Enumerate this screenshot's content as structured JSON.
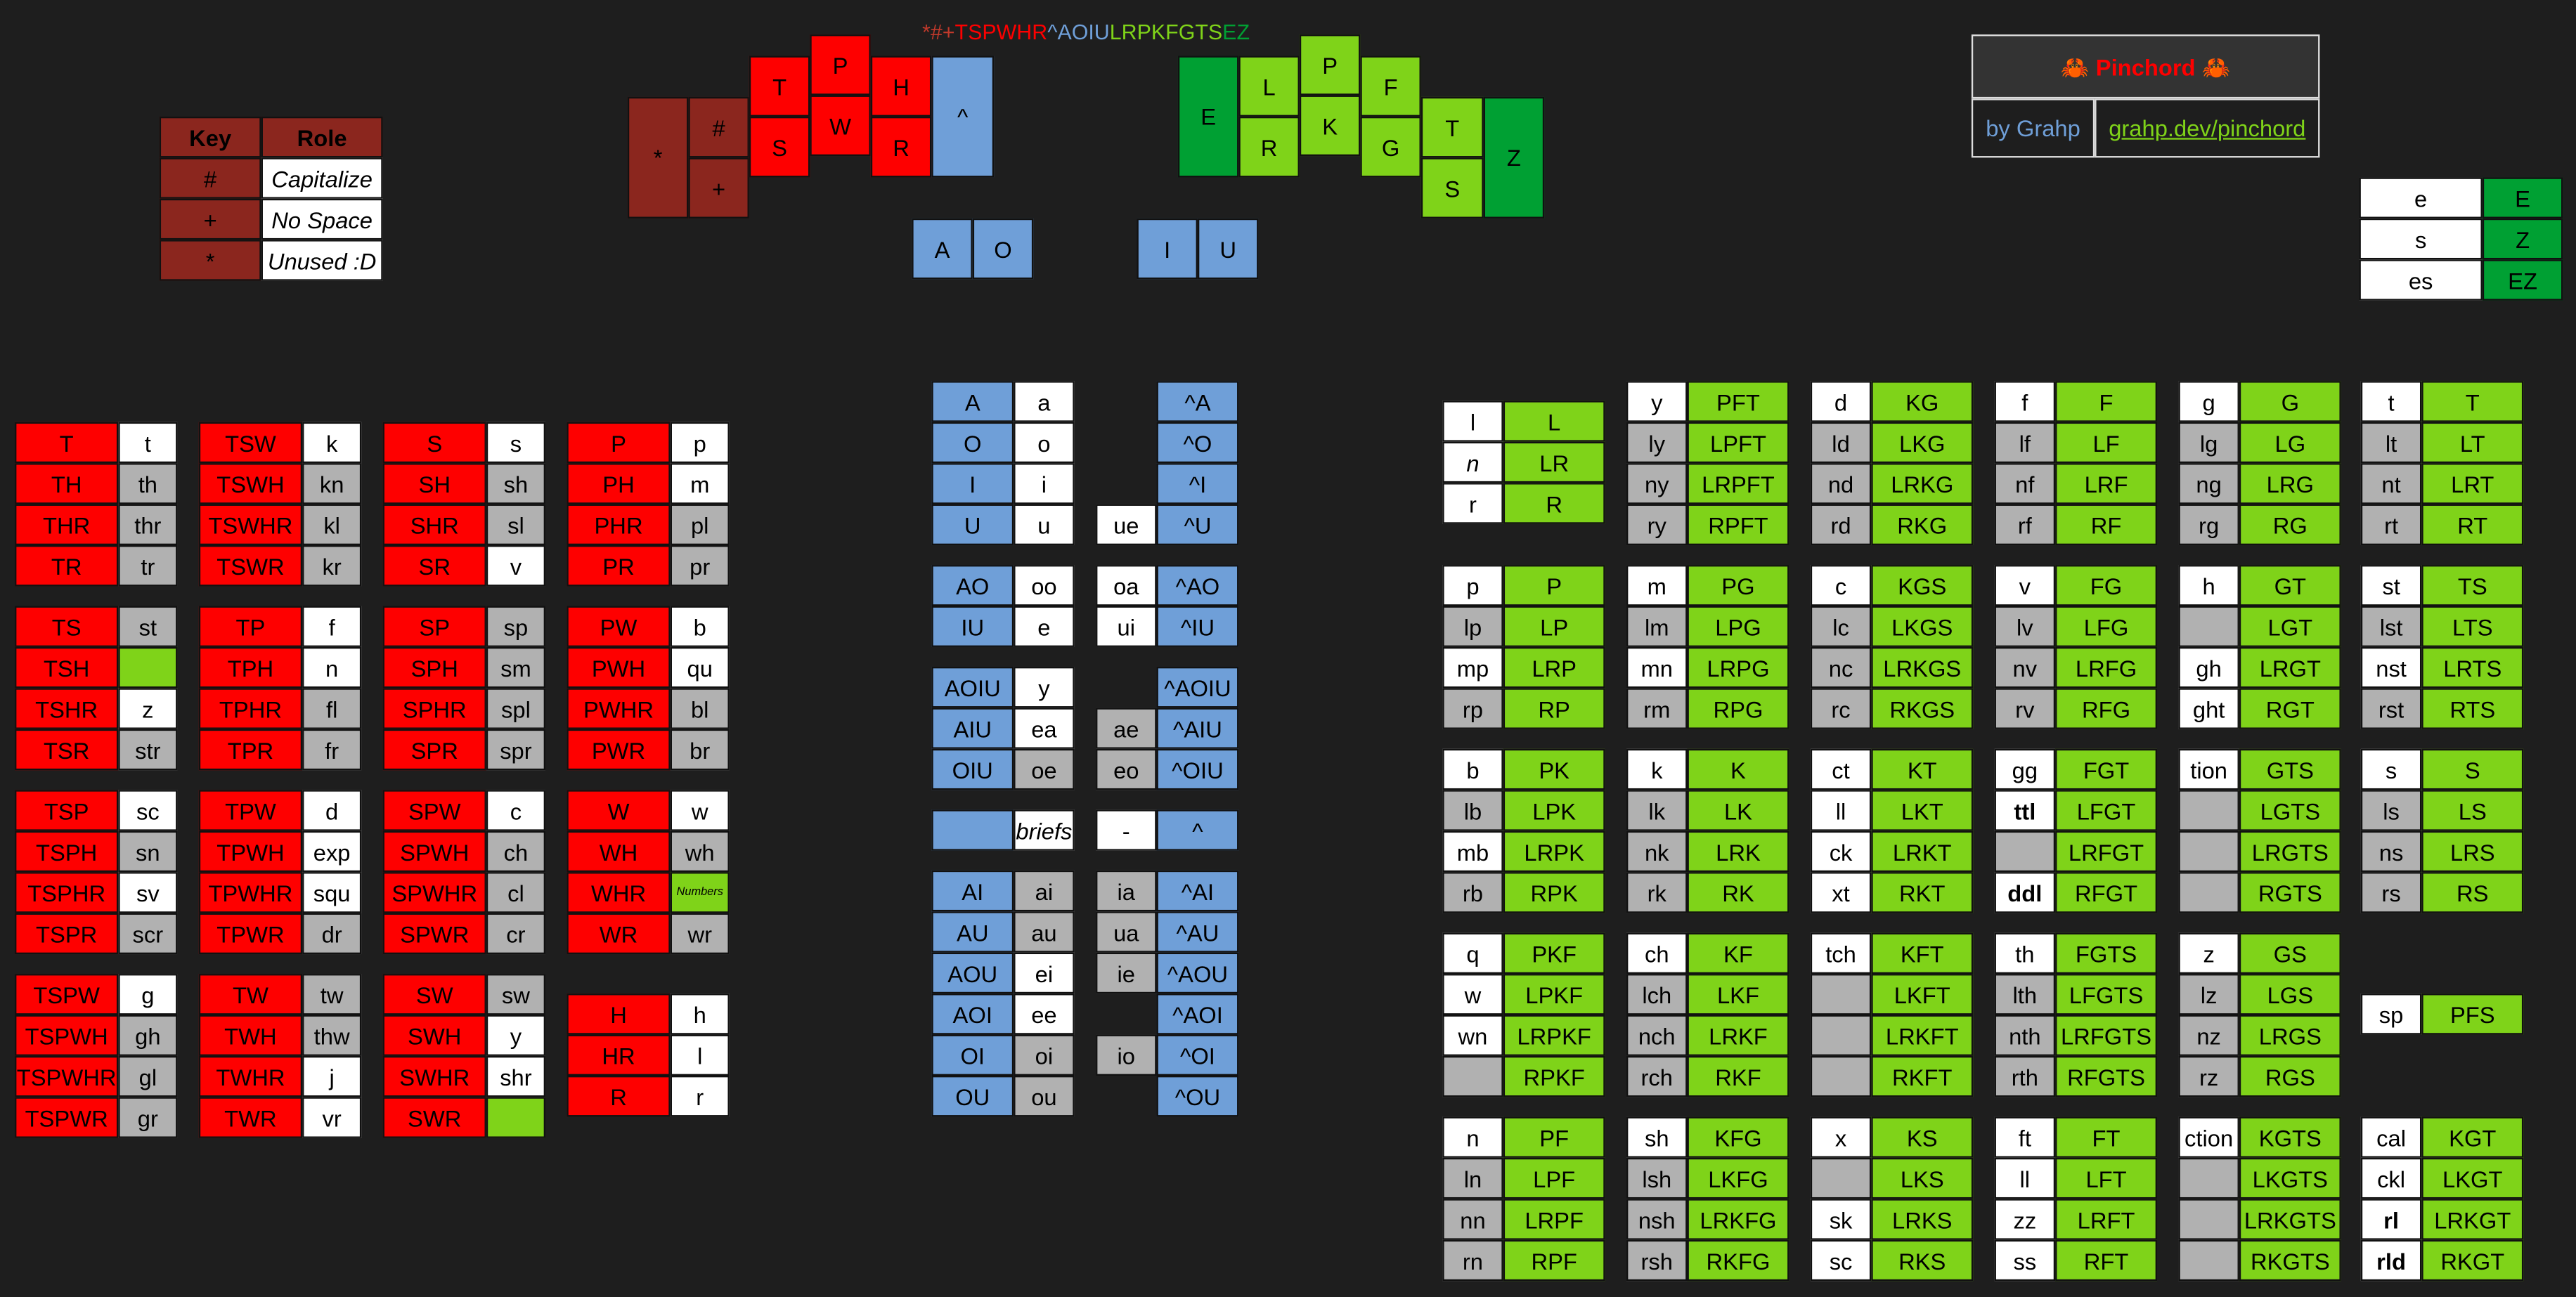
{
  "steno_order": [
    {
      "text": "*#+",
      "color": "#c0392b"
    },
    {
      "text": "TSPWHR",
      "color": "#fe0000"
    },
    {
      "text": "^AOIU",
      "color": "#6f9fd8"
    },
    {
      "text": "LRPKFGTS",
      "color": "#7fd319"
    },
    {
      "text": "EZ",
      "color": "#00a033"
    }
  ],
  "title_box": {
    "title": "🦀 Pinchord 🦀",
    "byline": "by Grahp",
    "link": "grahp.dev/pinchord"
  },
  "key_legend": {
    "headers": [
      "Key",
      "Role"
    ],
    "rows": [
      [
        "#",
        "Capitalize"
      ],
      [
        "+",
        "No Space"
      ],
      [
        "*",
        "Unused :D"
      ]
    ]
  },
  "keyboard": {
    "left_keys": [
      "*",
      "#",
      "+",
      "T",
      "S",
      "P",
      "W",
      "H",
      "R",
      "^"
    ],
    "right_keys": [
      "E",
      "L",
      "R",
      "P",
      "K",
      "F",
      "G",
      "T",
      "S",
      "Z"
    ],
    "vowel_keys": [
      "A",
      "O",
      "I",
      "U"
    ]
  },
  "final_suffix_table": [
    [
      "e",
      "E"
    ],
    [
      "s",
      "Z"
    ],
    [
      "es",
      "EZ"
    ]
  ],
  "starters": [
    [
      [
        [
          "T",
          "t"
        ],
        [
          "TH",
          "th"
        ],
        [
          "THR",
          "thr"
        ],
        [
          "TR",
          "tr"
        ]
      ],
      [
        [
          "TS",
          "st"
        ],
        [
          "TSH",
          ""
        ],
        [
          "TSHR",
          "z"
        ],
        [
          "TSR",
          "str"
        ]
      ],
      [
        [
          "TSP",
          "sc"
        ],
        [
          "TSPH",
          "sn"
        ],
        [
          "TSPHR",
          "sv"
        ],
        [
          "TSPR",
          "scr"
        ]
      ],
      [
        [
          "TSPW",
          "g"
        ],
        [
          "TSPWH",
          "gh"
        ],
        [
          "TSPWHR",
          "gl"
        ],
        [
          "TSPWR",
          "gr"
        ]
      ]
    ],
    [
      [
        [
          "TSW",
          "k"
        ],
        [
          "TSWH",
          "kn"
        ],
        [
          "TSWHR",
          "kl"
        ],
        [
          "TSWR",
          "kr"
        ]
      ],
      [
        [
          "TP",
          "f"
        ],
        [
          "TPH",
          "n"
        ],
        [
          "TPHR",
          "fl"
        ],
        [
          "TPR",
          "fr"
        ]
      ],
      [
        [
          "TPW",
          "d"
        ],
        [
          "TPWH",
          "exp"
        ],
        [
          "TPWHR",
          "squ"
        ],
        [
          "TPWR",
          "dr"
        ]
      ],
      [
        [
          "TW",
          "tw"
        ],
        [
          "TWH",
          "thw"
        ],
        [
          "TWHR",
          "j"
        ],
        [
          "TWR",
          "vr"
        ]
      ]
    ],
    [
      [
        [
          "S",
          "s"
        ],
        [
          "SH",
          "sh"
        ],
        [
          "SHR",
          "sl"
        ],
        [
          "SR",
          "v"
        ]
      ],
      [
        [
          "SP",
          "sp"
        ],
        [
          "SPH",
          "sm"
        ],
        [
          "SPHR",
          "spl"
        ],
        [
          "SPR",
          "spr"
        ]
      ],
      [
        [
          "SPW",
          "c"
        ],
        [
          "SPWH",
          "ch"
        ],
        [
          "SPWHR",
          "cl"
        ],
        [
          "SPWR",
          "cr"
        ]
      ],
      [
        [
          "SW",
          "sw"
        ],
        [
          "SWH",
          "y"
        ],
        [
          "SWHR",
          "shr"
        ],
        [
          "SWR",
          ""
        ]
      ]
    ],
    [
      [
        [
          "P",
          "p"
        ],
        [
          "PH",
          "m"
        ],
        [
          "PHR",
          "pl"
        ],
        [
          "PR",
          "pr"
        ]
      ],
      [
        [
          "PW",
          "b"
        ],
        [
          "PWH",
          "qu"
        ],
        [
          "PWHR",
          "bl"
        ],
        [
          "PWR",
          "br"
        ]
      ],
      [
        [
          "W",
          "w"
        ],
        [
          "WH",
          "wh"
        ],
        [
          "WHR",
          "Numbers"
        ],
        [
          "WR",
          "wr"
        ]
      ],
      [
        [
          "H",
          "h"
        ],
        [
          "HR",
          "l"
        ],
        [
          "R",
          "r"
        ]
      ]
    ]
  ],
  "vowels": {
    "group1": [
      [
        "A",
        "a",
        "",
        ""
      ],
      [
        "O",
        "o",
        "",
        ""
      ],
      [
        "I",
        "i",
        "",
        ""
      ],
      [
        "U",
        "u",
        "ue",
        ""
      ]
    ],
    "group1_caps": [
      "^A",
      "^O",
      "^I",
      "^U"
    ],
    "group2": [
      [
        "AO",
        "oo",
        "oa",
        "^AO"
      ],
      [
        "IU",
        "e",
        "ui",
        "^IU"
      ]
    ],
    "group3": [
      [
        "AOIU",
        "y",
        "",
        "^AOIU"
      ],
      [
        "AIU",
        "ea",
        "ae",
        "^AIU"
      ],
      [
        "OIU",
        "oe",
        "eo",
        "^OIU"
      ]
    ],
    "group4": [
      [
        "",
        "briefs",
        "-",
        "^"
      ]
    ],
    "group5": [
      [
        "AI",
        "ai",
        "ia",
        "^AI"
      ],
      [
        "AU",
        "au",
        "ua",
        "^AU"
      ],
      [
        "AOU",
        "ei",
        "ie",
        "^AOU"
      ],
      [
        "AOI",
        "ee",
        "",
        "^AOI"
      ],
      [
        "OI",
        "oi",
        "io",
        "^OI"
      ],
      [
        "OU",
        "ou",
        "",
        "^OU"
      ]
    ]
  },
  "enders": [
    [
      [
        [
          "l",
          "L"
        ],
        [
          "n",
          "LR"
        ],
        [
          "r",
          "R"
        ]
      ],
      [
        [
          "p",
          "P"
        ],
        [
          "lp",
          "LP"
        ],
        [
          "mp",
          "LRP"
        ],
        [
          "rp",
          "RP"
        ]
      ],
      [
        [
          "b",
          "PK"
        ],
        [
          "lb",
          "LPK"
        ],
        [
          "mb",
          "LRPK"
        ],
        [
          "rb",
          "RPK"
        ]
      ],
      [
        [
          "q",
          "PKF"
        ],
        [
          "w",
          "LPKF"
        ],
        [
          "wn",
          "LRPKF"
        ],
        [
          "",
          "RPKF"
        ]
      ],
      [
        [
          "n",
          "PF"
        ],
        [
          "ln",
          "LPF"
        ],
        [
          "nn",
          "LRPF"
        ],
        [
          "rn",
          "RPF"
        ]
      ]
    ],
    [
      [
        [
          "y",
          "PFT"
        ],
        [
          "ly",
          "LPFT"
        ],
        [
          "ny",
          "LRPFT"
        ],
        [
          "ry",
          "RPFT"
        ]
      ],
      [
        [
          "m",
          "PG"
        ],
        [
          "lm",
          "LPG"
        ],
        [
          "mn",
          "LRPG"
        ],
        [
          "rm",
          "RPG"
        ]
      ],
      [
        [
          "k",
          "K"
        ],
        [
          "lk",
          "LK"
        ],
        [
          "nk",
          "LRK"
        ],
        [
          "rk",
          "RK"
        ]
      ],
      [
        [
          "ch",
          "KF"
        ],
        [
          "lch",
          "LKF"
        ],
        [
          "nch",
          "LRKF"
        ],
        [
          "rch",
          "RKF"
        ]
      ],
      [
        [
          "sh",
          "KFG"
        ],
        [
          "lsh",
          "LKFG"
        ],
        [
          "nsh",
          "LRKFG"
        ],
        [
          "rsh",
          "RKFG"
        ]
      ]
    ],
    [
      [
        [
          "d",
          "KG"
        ],
        [
          "ld",
          "LKG"
        ],
        [
          "nd",
          "LRKG"
        ],
        [
          "rd",
          "RKG"
        ]
      ],
      [
        [
          "c",
          "KGS"
        ],
        [
          "lc",
          "LKGS"
        ],
        [
          "nc",
          "LRKGS"
        ],
        [
          "rc",
          "RKGS"
        ]
      ],
      [
        [
          "ct",
          "KT"
        ],
        [
          "ll",
          "LKT"
        ],
        [
          "ck",
          "LRKT"
        ],
        [
          "xt",
          "RKT"
        ]
      ],
      [
        [
          "tch",
          "KFT"
        ],
        [
          "",
          "LKFT"
        ],
        [
          "",
          "LRKFT"
        ],
        [
          "",
          "RKFT"
        ]
      ],
      [
        [
          "x",
          "KS"
        ],
        [
          "",
          "LKS"
        ],
        [
          "sk",
          "LRKS"
        ],
        [
          "sc",
          "RKS"
        ]
      ]
    ],
    [
      [
        [
          "f",
          "F"
        ],
        [
          "lf",
          "LF"
        ],
        [
          "nf",
          "LRF"
        ],
        [
          "rf",
          "RF"
        ]
      ],
      [
        [
          "v",
          "FG"
        ],
        [
          "lv",
          "LFG"
        ],
        [
          "nv",
          "LRFG"
        ],
        [
          "rv",
          "RFG"
        ]
      ],
      [
        [
          "gg",
          "FGT"
        ],
        [
          "ttl",
          "LFGT"
        ],
        [
          "",
          "LRFGT"
        ],
        [
          "ddl",
          "RFGT"
        ]
      ],
      [
        [
          "th",
          "FGTS"
        ],
        [
          "lth",
          "LFGTS"
        ],
        [
          "nth",
          "LRFGTS"
        ],
        [
          "rth",
          "RFGTS"
        ]
      ],
      [
        [
          "ft",
          "FT"
        ],
        [
          "ll",
          "LFT"
        ],
        [
          "zz",
          "LRFT"
        ],
        [
          "ss",
          "RFT"
        ]
      ]
    ],
    [
      [
        [
          "g",
          "G"
        ],
        [
          "lg",
          "LG"
        ],
        [
          "ng",
          "LRG"
        ],
        [
          "rg",
          "RG"
        ]
      ],
      [
        [
          "h",
          "GT"
        ],
        [
          "",
          "LGT"
        ],
        [
          "gh",
          "LRGT"
        ],
        [
          "ght",
          "RGT"
        ]
      ],
      [
        [
          "tion",
          "GTS"
        ],
        [
          "",
          "LGTS"
        ],
        [
          "",
          "LRGTS"
        ],
        [
          "",
          "RGTS"
        ]
      ],
      [
        [
          "z",
          "GS"
        ],
        [
          "lz",
          "LGS"
        ],
        [
          "nz",
          "LRGS"
        ],
        [
          "rz",
          "RGS"
        ]
      ],
      [
        [
          "ction",
          "KGTS"
        ],
        [
          "",
          "LKGTS"
        ],
        [
          "",
          "LRKGTS"
        ],
        [
          "",
          "RKGTS"
        ]
      ]
    ],
    [
      [
        [
          "t",
          "T"
        ],
        [
          "lt",
          "LT"
        ],
        [
          "nt",
          "LRT"
        ],
        [
          "rt",
          "RT"
        ]
      ],
      [
        [
          "st",
          "TS"
        ],
        [
          "lst",
          "LTS"
        ],
        [
          "nst",
          "LRTS"
        ],
        [
          "rst",
          "RTS"
        ]
      ],
      [
        [
          "s",
          "S"
        ],
        [
          "ls",
          "LS"
        ],
        [
          "ns",
          "LRS"
        ],
        [
          "rs",
          "RS"
        ]
      ],
      [
        [
          "sp",
          "PFS"
        ]
      ],
      [
        [
          "cal",
          "KGT"
        ],
        [
          "ckl",
          "LKGT"
        ],
        [
          "rl",
          "LRKGT"
        ],
        [
          "rld",
          "RKGT"
        ]
      ]
    ]
  ]
}
